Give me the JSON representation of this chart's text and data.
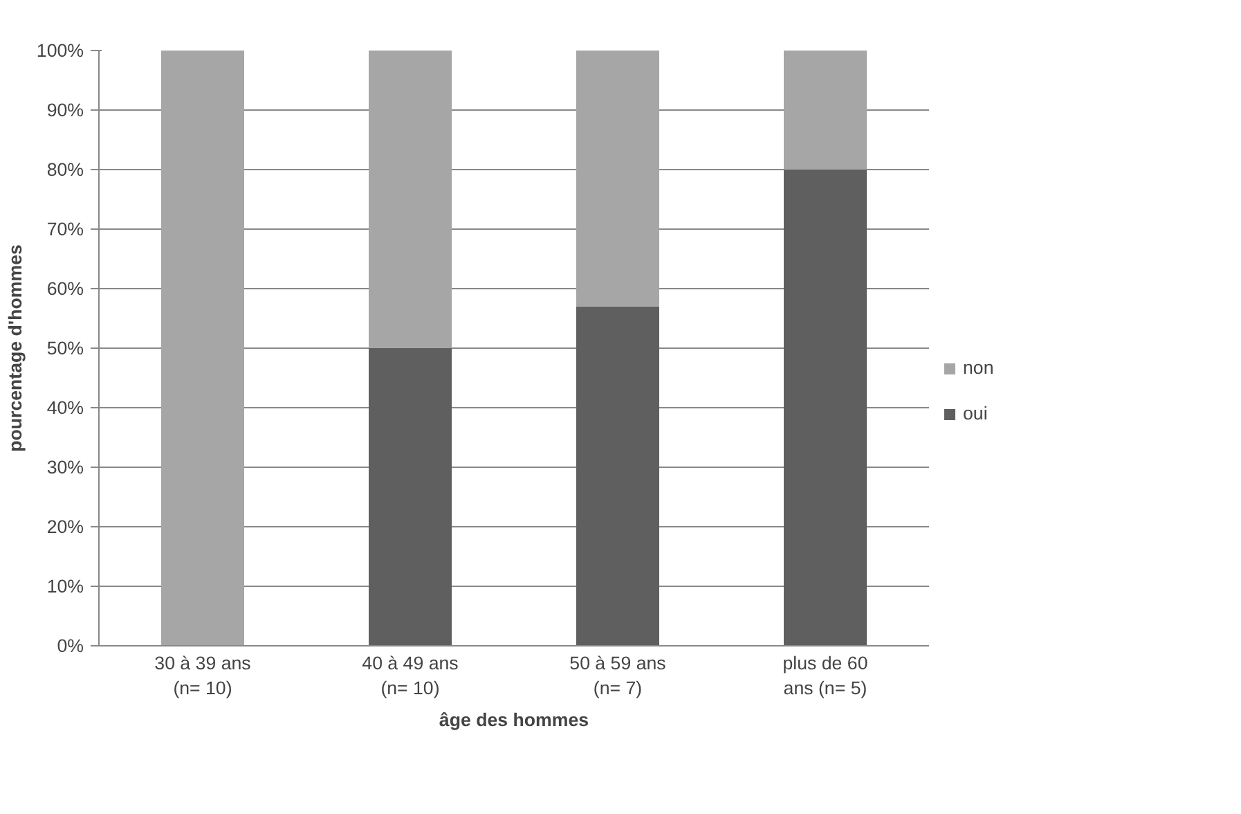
{
  "chart_data": {
    "type": "bar",
    "stacked": true,
    "categories": [
      "30 à 39 ans\n(n= 10)",
      "40 à 49 ans\n(n= 10)",
      "50 à 59 ans\n(n= 7)",
      "plus de 60\nans (n= 5)"
    ],
    "series": [
      {
        "name": "oui",
        "color": "#5f5f5f",
        "values": [
          0,
          50,
          57,
          80
        ]
      },
      {
        "name": "non",
        "color": "#a6a6a6",
        "values": [
          100,
          50,
          43,
          20
        ]
      }
    ],
    "xlabel": "âge des hommes",
    "ylabel": "pourcentage d'hommes",
    "ylim": [
      0,
      100
    ],
    "yticks": [
      {
        "value": 0,
        "label": "0%"
      },
      {
        "value": 10,
        "label": "10%"
      },
      {
        "value": 20,
        "label": "20%"
      },
      {
        "value": 30,
        "label": "30%"
      },
      {
        "value": 40,
        "label": "40%"
      },
      {
        "value": 50,
        "label": "50%"
      },
      {
        "value": 60,
        "label": "60%"
      },
      {
        "value": 70,
        "label": "70%"
      },
      {
        "value": 80,
        "label": "80%"
      },
      {
        "value": 90,
        "label": "90%"
      },
      {
        "value": 100,
        "label": "100%"
      }
    ],
    "grid": "y",
    "legend": "right"
  }
}
